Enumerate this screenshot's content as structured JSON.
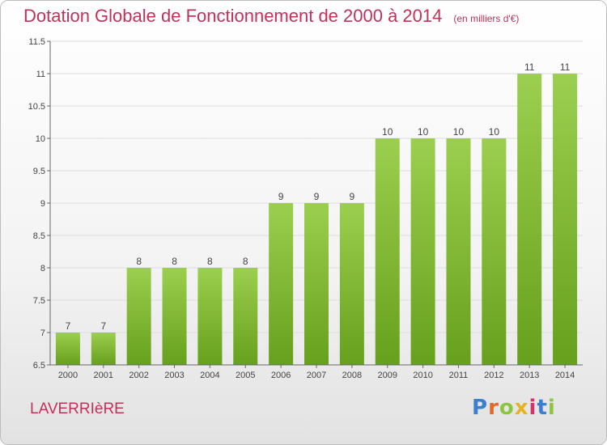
{
  "title": "Dotation Globale de Fonctionnement de 2000 à 2014",
  "subtitle": "(en milliers d'€)",
  "commune": "LAVERRIèRE",
  "logo": {
    "text": "Proxiti",
    "letters": [
      "P",
      "r",
      "o",
      "x",
      "i",
      "t",
      "i"
    ]
  },
  "colors": {
    "title": "#c0325a",
    "bar_light": "#9ccf4f",
    "bar_dark": "#66a01c",
    "axis": "#666666",
    "grid": "#dddddd"
  },
  "chart_data": {
    "type": "bar",
    "categories": [
      "2000",
      "2001",
      "2002",
      "2003",
      "2004",
      "2005",
      "2006",
      "2007",
      "2008",
      "2009",
      "2010",
      "2011",
      "2012",
      "2013",
      "2014"
    ],
    "values": [
      7,
      7,
      8,
      8,
      8,
      8,
      9,
      9,
      9,
      10,
      10,
      10,
      10,
      11,
      11
    ],
    "data_labels": [
      "7",
      "7",
      "8",
      "8",
      "8",
      "8",
      "9",
      "9",
      "9",
      "10",
      "10",
      "10",
      "10",
      "11",
      "11"
    ],
    "yticks": [
      6.5,
      7,
      7.5,
      8,
      8.5,
      9,
      9.5,
      10,
      10.5,
      11,
      11.5
    ],
    "ytick_labels": [
      "6.5",
      "7",
      "7.5",
      "8",
      "8.5",
      "9",
      "9.5",
      "10",
      "10.5",
      "11",
      "11.5"
    ],
    "ylim": [
      6.5,
      11.5
    ],
    "grid": true,
    "legend": false
  }
}
